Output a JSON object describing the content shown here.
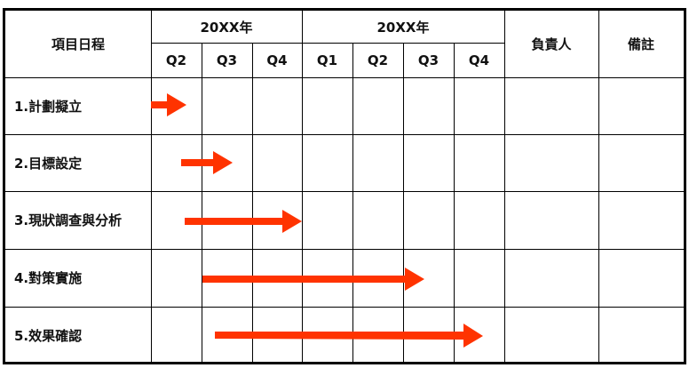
{
  "header": {
    "schedule": "項目日程",
    "year1": "20XX年",
    "year2": "20XX年",
    "owner": "負責人",
    "note": "備註",
    "quarters": [
      "Q2",
      "Q3",
      "Q4",
      "Q1",
      "Q2",
      "Q3",
      "Q4"
    ]
  },
  "tasks": [
    {
      "label": "1.計劃擬立"
    },
    {
      "label": "2.目標設定"
    },
    {
      "label": "3.現狀調查與分析"
    },
    {
      "label": "4.對策實施"
    },
    {
      "label": "5.效果確認"
    }
  ],
  "colors": {
    "arrow": "#ff3300"
  }
}
